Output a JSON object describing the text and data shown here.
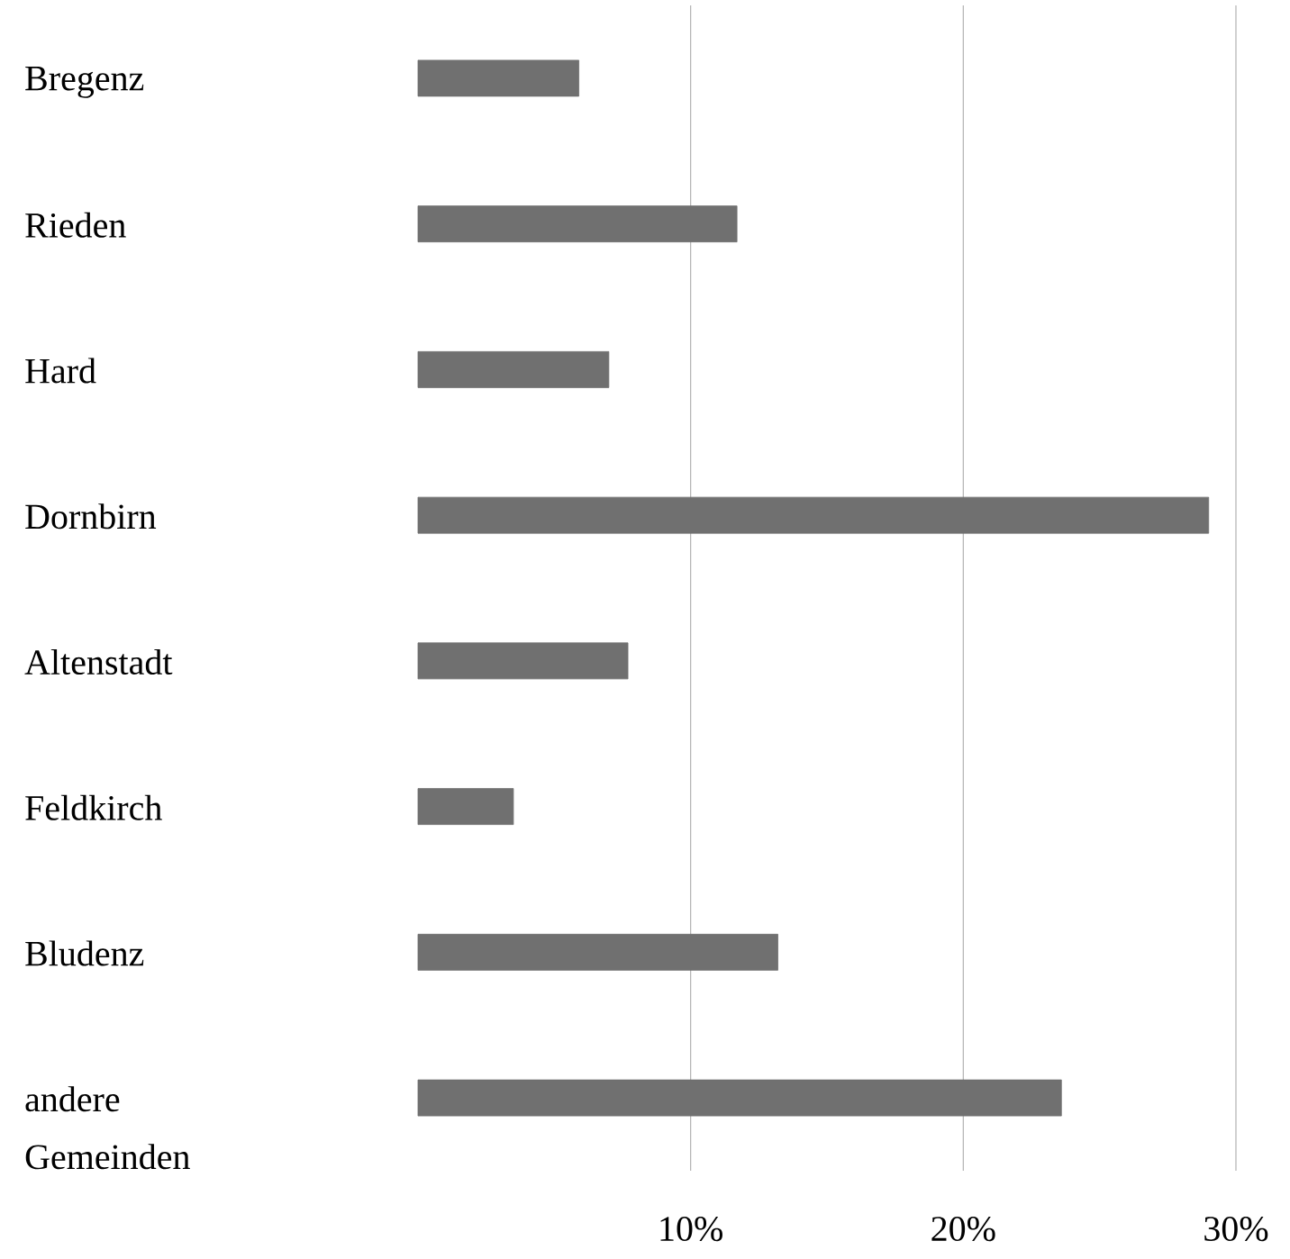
{
  "chart_data": {
    "type": "bar",
    "orientation": "horizontal",
    "categories": [
      "Bregenz",
      "Rieden",
      "Hard",
      "Dornbirn",
      "Altenstadt",
      "Feldkirch",
      "Bludenz",
      "andere Gemeinden"
    ],
    "values": [
      5.9,
      11.7,
      7.0,
      29.0,
      7.7,
      3.5,
      13.2,
      23.6
    ],
    "color": "#707070",
    "xlim": [
      0,
      30
    ],
    "xticks": [
      {
        "value": 10,
        "label": "10%"
      },
      {
        "value": 20,
        "label": "20%"
      },
      {
        "value": 30,
        "label": "30%"
      }
    ],
    "grid": "x"
  }
}
